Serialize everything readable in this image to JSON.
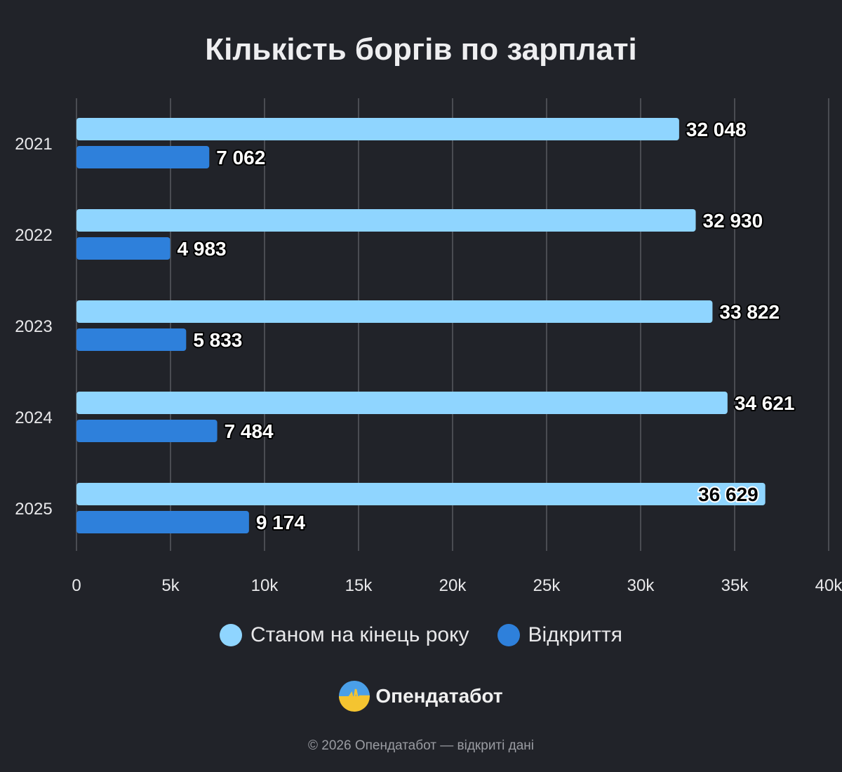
{
  "chart_data": {
    "type": "bar",
    "orientation": "horizontal",
    "title": "Кількість боргів по зарплаті",
    "categories": [
      "2021",
      "2022",
      "2023",
      "2024",
      "2025"
    ],
    "series": [
      {
        "name": "Станом на кінець року",
        "color": "#8fd5ff",
        "values": [
          32048,
          32930,
          33822,
          34621,
          36629
        ],
        "labels": [
          "32 048",
          "32 930",
          "33 822",
          "34 621",
          "36 629"
        ]
      },
      {
        "name": "Відкриття",
        "color": "#2e80db",
        "values": [
          7062,
          4983,
          5833,
          7484,
          9174
        ],
        "labels": [
          "7 062",
          "4 983",
          "5 833",
          "7 484",
          "9 174"
        ]
      }
    ],
    "xlim": [
      0,
      40000
    ],
    "xticks": [
      0,
      5000,
      10000,
      15000,
      20000,
      25000,
      30000,
      35000,
      40000
    ],
    "xtick_labels": [
      "0",
      "5k",
      "10k",
      "15k",
      "20k",
      "25k",
      "30k",
      "35k",
      "40k"
    ],
    "grid": "vertical",
    "legend_position": "bottom"
  },
  "brand": {
    "name": "Опендатабот"
  },
  "footer": "© 2026 Опендатабот — відкриті дані",
  "colors": {
    "background": "#212329",
    "grid": "#4a4c52"
  }
}
